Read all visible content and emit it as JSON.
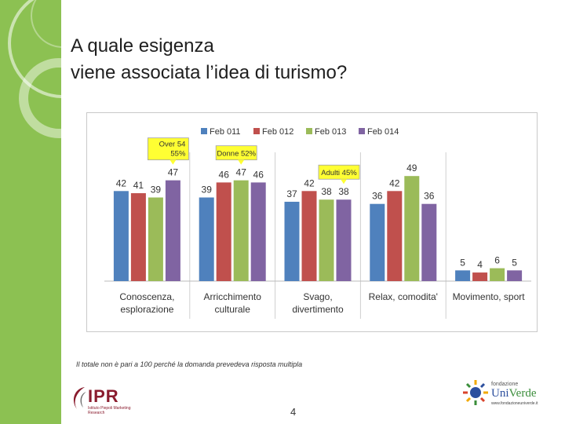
{
  "slide": {
    "title_line1": "A quale esigenza",
    "title_line2": "viene associata l’idea di turismo?",
    "footnote": "Il totale  non è pari a  100 perché la domanda prevedeva risposta multipla",
    "page_number": "4"
  },
  "logos": {
    "ipr_text": "IPR",
    "ipr_sub": "Istituto Piepoli Marketing Research",
    "univerde_small": "fondazione",
    "univerde_uni": "Uni",
    "univerde_verde": "Verde",
    "univerde_url": "www.fondazioneuniverde.it"
  },
  "colors": {
    "sidebar": "#8cc152",
    "feb011": "#4f81bd",
    "feb012": "#c0504d",
    "feb013": "#9bbb59",
    "feb014": "#8064a2",
    "callout_fill": "#ffff33"
  },
  "chart_data": {
    "type": "bar",
    "categories": [
      "Conoscenza, esplorazione",
      "Arricchimento culturale",
      "Svago, divertimento",
      "Relax, comodita'",
      "Movimento, sport"
    ],
    "category_labels": [
      [
        "Conoscenza,",
        "esplorazione"
      ],
      [
        "Arricchimento",
        "culturale"
      ],
      [
        "Svago,",
        "divertimento"
      ],
      [
        "Relax, comodita'"
      ],
      [
        "Movimento, sport"
      ]
    ],
    "series": [
      {
        "name": "Feb 011",
        "color": "#4f81bd",
        "values": [
          42,
          39,
          37,
          36,
          5
        ]
      },
      {
        "name": "Feb 012",
        "color": "#c0504d",
        "values": [
          41,
          46,
          42,
          42,
          4
        ]
      },
      {
        "name": "Feb 013",
        "color": "#9bbb59",
        "values": [
          39,
          47,
          38,
          49,
          6
        ]
      },
      {
        "name": "Feb 014",
        "color": "#8064a2",
        "values": [
          47,
          46,
          38,
          36,
          5
        ]
      }
    ],
    "ylim": [
      0,
      70
    ],
    "legend_position": "top",
    "annotations": [
      {
        "category": 0,
        "series": 3,
        "lines": [
          "Over 54",
          "55%"
        ]
      },
      {
        "category": 1,
        "series": 2,
        "lines": [
          "Donne 52%"
        ]
      },
      {
        "category": 2,
        "series": 3,
        "lines": [
          "Adulti  45%"
        ]
      }
    ],
    "title": "",
    "xlabel": "",
    "ylabel": ""
  }
}
